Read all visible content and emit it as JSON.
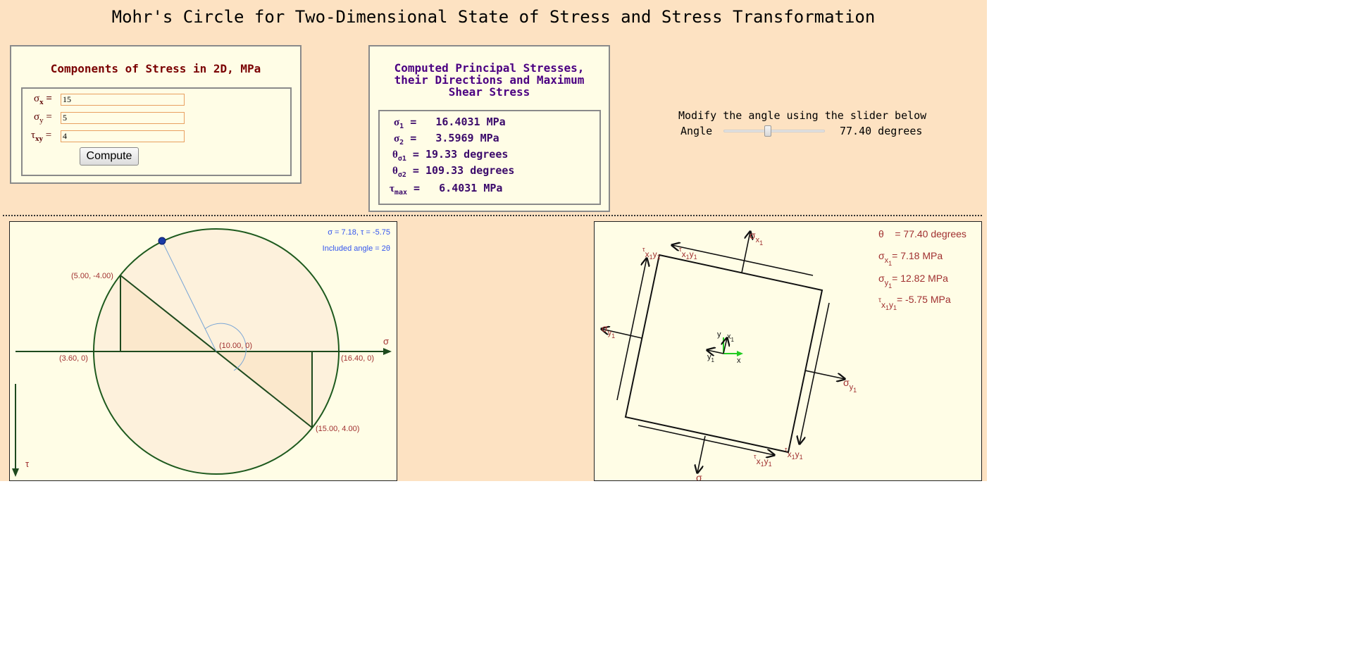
{
  "title": "Mohr's Circle for Two-Dimensional State of Stress and Stress Transformation",
  "input_panel": {
    "heading": "Components of Stress in 2D, MPa",
    "sigma_x_label": "σ",
    "sigma_x_sub": "x",
    "sigma_x_value": "15",
    "sigma_y_label": "σ",
    "sigma_y_sub": "y",
    "sigma_y_value": "5",
    "tau_xy_label": "τ",
    "tau_xy_sub": "xy",
    "tau_xy_value": "4",
    "eq": "=",
    "compute_label": "Compute"
  },
  "results_panel": {
    "heading_line1": "Computed Principal Stresses,",
    "heading_line2": "their Directions and Maximum",
    "heading_line3": "Shear Stress",
    "sigma1_label": "σ",
    "sigma1_sub": "1",
    "sigma1_value": "=   16.4031 MPa",
    "sigma2_label": "σ",
    "sigma2_sub": "2",
    "sigma2_value": "=   3.5969 MPa",
    "theta1_label": "θ",
    "theta1_sub": "σ1",
    "theta1_value": "= 19.33 degrees",
    "theta2_label": "θ",
    "theta2_sub": "σ2",
    "theta2_value": "= 109.33 degrees",
    "taumax_label": "τ",
    "taumax_sub": "max",
    "taumax_value": "=   6.4031 MPa"
  },
  "slider": {
    "instruction": "Modify the angle using the slider below",
    "label": "Angle",
    "value_text": "77.40 degrees",
    "min": 0,
    "max": 180,
    "value": 77.4
  },
  "mohr_circle": {
    "readout": "σ = 7.18, τ = -5.75",
    "included_angle": "Included angle = 2θ",
    "point_a": "(5.00, -4.00)",
    "point_b": "(15.00, 4.00)",
    "center": "(10.00, 0)",
    "left_intercept": "(3.60, 0)",
    "right_intercept": "(16.40, 0)",
    "sigma_axis": "σ",
    "tau_axis": "τ",
    "circle_color": "#1e5a1e",
    "label_color": "#a03030",
    "readout_color": "#3355ee"
  },
  "element": {
    "theta_line": "θ    = 77.40 degrees",
    "sx1_line_value": "= 7.18 MPa",
    "sy1_line_value": "= 12.82 MPa",
    "txy1_line_value": "= -5.75 MPa",
    "sigma": "σ",
    "tau": "τ",
    "x1": "x",
    "y1": "y",
    "x1y1": "x",
    "one": "1",
    "axis_x": "x",
    "axis_y": "y",
    "axis_x1": "x",
    "axis_y1": "y",
    "text_color": "#a03030",
    "axis_color": "#22cc22"
  },
  "colors": {
    "background": "#fde2c2",
    "panel": "#fffde6",
    "heading_red": "#7a0000",
    "heading_purple": "#4b0082"
  }
}
